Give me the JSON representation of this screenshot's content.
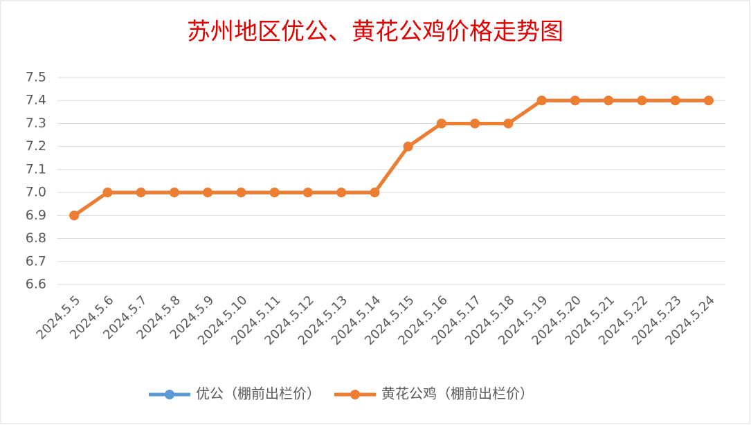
{
  "chart_data": {
    "type": "line",
    "title": "苏州地区优公、黄花公鸡价格走势图",
    "categories": [
      "2024.5.5",
      "2024.5.6",
      "2024.5.7",
      "2024.5.8",
      "2024.5.9",
      "2024.5.10",
      "2024.5.11",
      "2024.5.12",
      "2024.5.13",
      "2024.5.14",
      "2024.5.15",
      "2024.5.16",
      "2024.5.17",
      "2024.5.18",
      "2024.5.19",
      "2024.5.20",
      "2024.5.21",
      "2024.5.22",
      "2024.5.23",
      "2024.5.24"
    ],
    "series": [
      {
        "name": "优公（棚前出栏价）",
        "color": "#5b9bd5",
        "values": [
          6.9,
          7.0,
          7.0,
          7.0,
          7.0,
          7.0,
          7.0,
          7.0,
          7.0,
          7.0,
          7.2,
          7.3,
          7.3,
          7.3,
          7.4,
          7.4,
          7.4,
          7.4,
          7.4,
          7.4
        ]
      },
      {
        "name": "黄花公鸡（棚前出栏价）",
        "color": "#ed7d31",
        "values": [
          6.9,
          7.0,
          7.0,
          7.0,
          7.0,
          7.0,
          7.0,
          7.0,
          7.0,
          7.0,
          7.2,
          7.3,
          7.3,
          7.3,
          7.4,
          7.4,
          7.4,
          7.4,
          7.4,
          7.4
        ]
      }
    ],
    "ylim": [
      6.6,
      7.5
    ],
    "yticks": [
      6.6,
      6.7,
      6.8,
      6.9,
      {
        "value": 7,
        "label": "7.0"
      },
      7.1,
      7.2,
      7.3,
      7.4,
      7.5
    ],
    "grid": true,
    "legend": "bottom"
  }
}
